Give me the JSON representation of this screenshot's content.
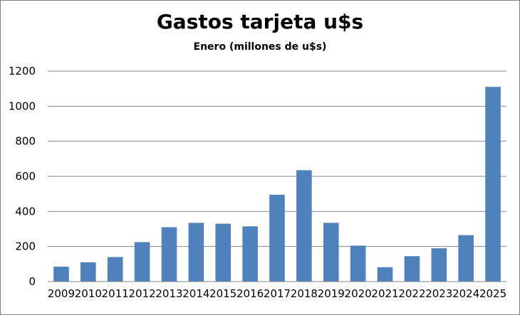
{
  "chart_data": {
    "type": "bar",
    "title": "Gastos tarjeta u$s",
    "subtitle": "Enero (millones de u$s)",
    "xlabel": "",
    "ylabel": "",
    "categories": [
      "2009",
      "2010",
      "2011",
      "2012",
      "2013",
      "2014",
      "2015",
      "2016",
      "2017",
      "2018",
      "2019",
      "2020",
      "2021",
      "2022",
      "2023",
      "2024",
      "2025"
    ],
    "values": [
      85,
      110,
      140,
      225,
      310,
      335,
      330,
      315,
      495,
      635,
      335,
      205,
      82,
      145,
      190,
      265,
      1110
    ],
    "ylim": [
      0,
      1200
    ],
    "yticks": [
      0,
      200,
      400,
      600,
      800,
      1000,
      1200
    ],
    "grid": true,
    "legend": "none",
    "bar_color": "#4f81bd",
    "grid_color": "#868686"
  }
}
